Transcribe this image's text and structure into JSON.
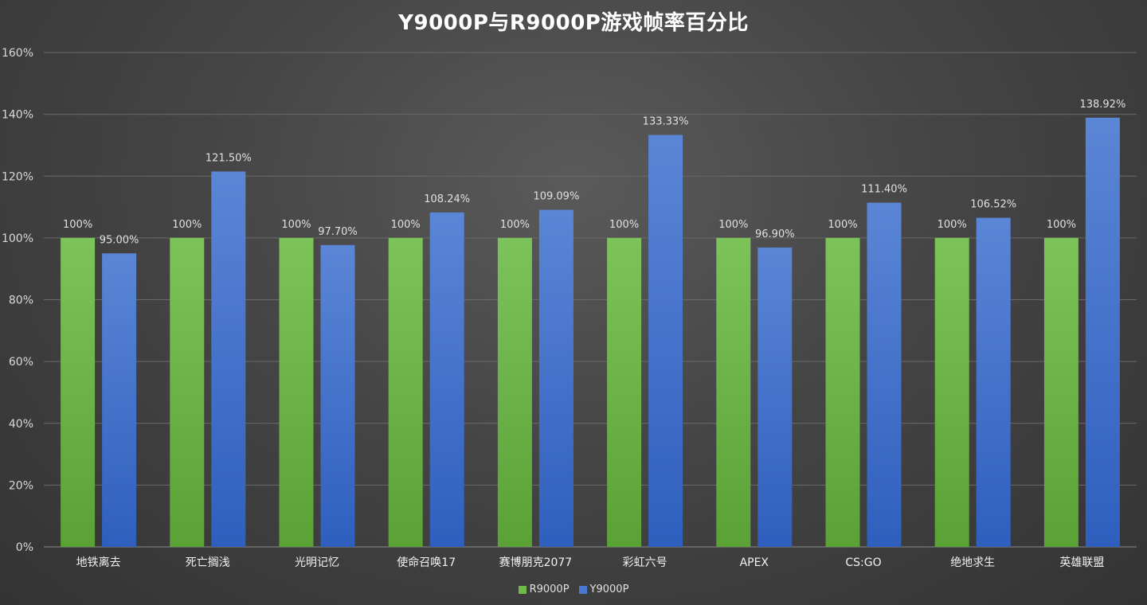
{
  "chart_data": {
    "type": "bar",
    "title": "Y9000P与R9000P游戏帧率百分比",
    "categories": [
      "地铁离去",
      "死亡搁浅",
      "光明记忆",
      "使命召唤17",
      "赛博朋克2077",
      "彩虹六号",
      "APEX",
      "CS:GO",
      "绝地求生",
      "英雄联盟"
    ],
    "series": [
      {
        "name": "R9000P",
        "color": "#6fb84a",
        "values": [
          100,
          100,
          100,
          100,
          100,
          100,
          100,
          100,
          100,
          100
        ],
        "labels": [
          "100%",
          "100%",
          "100%",
          "100%",
          "100%",
          "100%",
          "100%",
          "100%",
          "100%",
          "100%"
        ]
      },
      {
        "name": "Y9000P",
        "color": "#4a78d0",
        "values": [
          95.0,
          121.5,
          97.7,
          108.24,
          109.09,
          133.33,
          96.9,
          111.4,
          106.52,
          138.92
        ],
        "labels": [
          "95.00%",
          "121.50%",
          "97.70%",
          "108.24%",
          "109.09%",
          "133.33%",
          "96.90%",
          "111.40%",
          "106.52%",
          "138.92%"
        ]
      }
    ],
    "ylim": [
      0,
      160
    ],
    "yticks": [
      "0%",
      "20%",
      "40%",
      "60%",
      "80%",
      "100%",
      "120%",
      "140%",
      "160%"
    ],
    "grid": true,
    "legend_position": "bottom"
  }
}
